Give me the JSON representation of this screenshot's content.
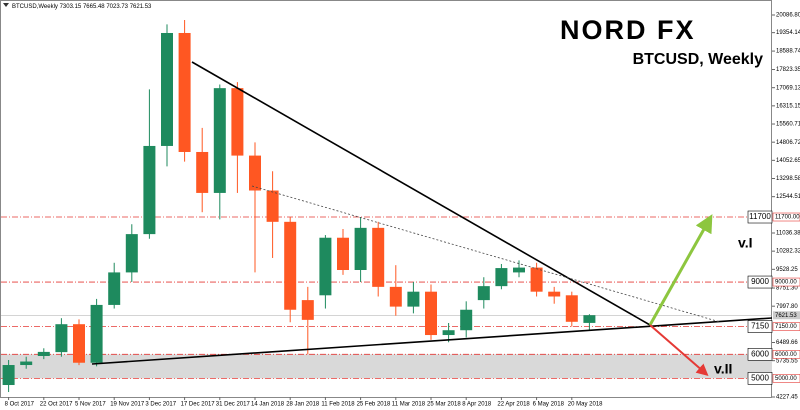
{
  "chart_data": {
    "type": "candlestick",
    "brand": "NORD FX",
    "title": "BTCUSD, Weekly",
    "symbol": "BTCUSD,Weekly",
    "categories": [
      "8 Oct 2017",
      null,
      "22 Oct 2017",
      null,
      "5 Nov 2017",
      null,
      "19 Nov 2017",
      null,
      "3 Dec 2017",
      null,
      "17 Dec 2017",
      null,
      "31 Dec 2017",
      null,
      "14 Jan 2018",
      null,
      "28 Jan 2018",
      null,
      "11 Feb 2018",
      null,
      "25 Feb 2018",
      null,
      "11 Mar 2018",
      null,
      "25 Mar 2018",
      null,
      "8 Apr 2018",
      null,
      "22 Apr 2018",
      null,
      "6 May 2018",
      null,
      "20 May 2018",
      null
    ],
    "up_color": "#1e8a5e",
    "down_color": "#ff5722",
    "series": {
      "open": [
        4725,
        5555,
        5930,
        6090,
        7250,
        5650,
        8050,
        9400,
        10990,
        14650,
        19340,
        14400,
        12700,
        17050,
        14250,
        12800,
        11500,
        8250,
        8450,
        10840,
        9500,
        11250,
        8800,
        7980,
        8600,
        6800,
        7000,
        8250,
        8830,
        9400,
        9600,
        8600,
        8450,
        7303.15
      ],
      "high": [
        5763,
        5900,
        6250,
        7500,
        7450,
        8300,
        9800,
        11400,
        17000,
        19700,
        19880,
        15400,
        17200,
        17300,
        14800,
        13600,
        11700,
        8800,
        10950,
        11200,
        11700,
        11500,
        9700,
        9000,
        8900,
        7300,
        8200,
        9200,
        9750,
        9900,
        9800,
        8800,
        8600,
        7665.48
      ],
      "low": [
        4434,
        5400,
        5800,
        5900,
        5550,
        5500,
        7900,
        9000,
        10800,
        13800,
        14000,
        11900,
        11600,
        12700,
        9400,
        10000,
        7330,
        6000,
        7900,
        9300,
        9000,
        8400,
        7600,
        7700,
        6600,
        6500,
        6700,
        7900,
        8700,
        9200,
        8400,
        8100,
        7150,
        7023.73
      ],
      "close": [
        5555,
        5700,
        6100,
        7250,
        5650,
        8050,
        9400,
        10990,
        14650,
        19340,
        14400,
        12700,
        17050,
        14250,
        12800,
        11500,
        7850,
        7430,
        10840,
        9500,
        11250,
        8800,
        7980,
        8600,
        6800,
        7000,
        7850,
        8830,
        9580,
        9600,
        8600,
        8400,
        7350,
        7621.53
      ]
    },
    "last_price": 7621.53,
    "levels": [
      {
        "value": 11700,
        "label": "11700.00"
      },
      {
        "value": 9000,
        "label": "9000.00"
      },
      {
        "value": 7150,
        "label": "7150.00"
      },
      {
        "value": 6000,
        "label": "6000.00"
      },
      {
        "value": 5000,
        "label": "5000.00"
      }
    ],
    "zone": [
      5000,
      6000
    ],
    "annotations": [
      "v.I",
      "v.II"
    ],
    "ylim": [
      4227.45,
      20709.6
    ],
    "yticks": [
      {
        "value": 20086.8,
        "label": "20086.80"
      },
      {
        "value": 19354.14,
        "label": "19354.14"
      },
      {
        "value": 18588.74,
        "label": "18588.74"
      },
      {
        "value": 17823.35,
        "label": "17823.35"
      },
      {
        "value": 17069.13,
        "label": "17069.13"
      },
      {
        "value": 16315.15,
        "label": "16315.15"
      },
      {
        "value": 15560.71,
        "label": "15560.71"
      },
      {
        "value": 14806.72,
        "label": "14806.72"
      },
      {
        "value": 14052.65,
        "label": "14052.65"
      },
      {
        "value": 13298.58,
        "label": "13298.58"
      },
      {
        "value": 12544.51,
        "label": "12544.51"
      },
      {
        "value": 11036.38,
        "label": "11036.38"
      },
      {
        "value": 10282.32,
        "label": "10282.32"
      },
      {
        "value": 9528.25,
        "label": "9528.25"
      },
      {
        "value": 8751.3,
        "label": "8751.30"
      },
      {
        "value": 7997.8,
        "label": "7997.80"
      },
      {
        "value": 6489.66,
        "label": "6489.66"
      },
      {
        "value": 5735.55,
        "label": "5735.55"
      },
      {
        "value": 4227.45,
        "label": "4227.45"
      }
    ]
  }
}
